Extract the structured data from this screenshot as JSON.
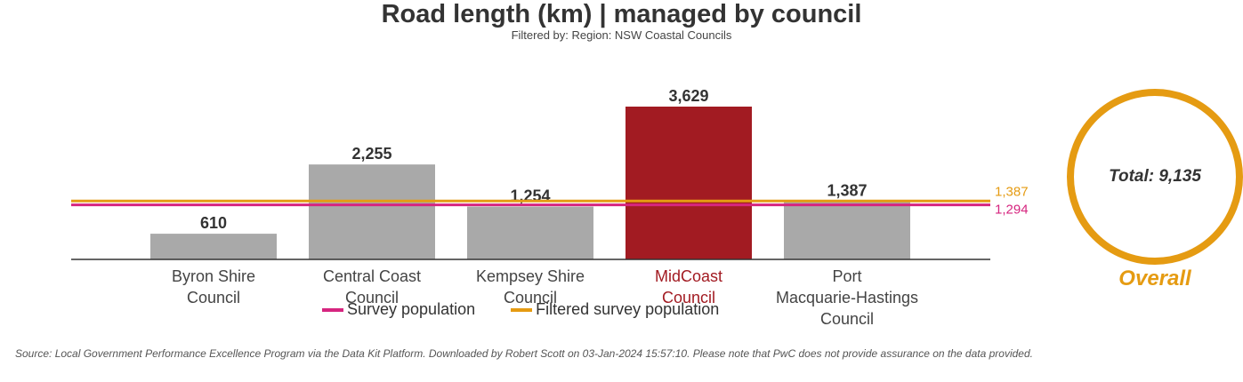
{
  "header": {
    "title": "Road length (km) | managed by council",
    "subtitle": "Filtered by: Region: NSW Coastal Councils"
  },
  "legend": {
    "survey_label": "Survey population",
    "filtered_label": "Filtered survey population"
  },
  "overall": {
    "total_text": "Total: 9,135",
    "label": "Overall"
  },
  "footer": {
    "source": "Source: Local Government Performance Excellence Program via the Data Kit Platform. Downloaded by Robert Scott on 03-Jan-2024 15:57:10. Please note that PwC does not provide assurance on the data provided."
  },
  "colors": {
    "bar_default": "#a9a9a9",
    "bar_highlight": "#a21b22",
    "label_highlight": "#a21b22",
    "survey_line": "#d6257f",
    "filtered_line": "#e59b12",
    "axis": "#333333"
  },
  "chart_data": {
    "type": "bar",
    "title": "Road length (km) | managed by council",
    "subtitle": "Filtered by: Region: NSW Coastal Councils",
    "categories": [
      "Byron Shire\nCouncil",
      "Central Coast\nCouncil",
      "Kempsey Shire\nCouncil",
      "MidCoast\nCouncil",
      "Port\nMacquarie-Hastings\nCouncil"
    ],
    "values": [
      610,
      2255,
      1254,
      3629,
      1387
    ],
    "value_labels": [
      "610",
      "2,255",
      "1,254",
      "3,629",
      "1,387"
    ],
    "highlight_index": 3,
    "ylim": [
      0,
      3629
    ],
    "grid": false,
    "reference_lines": [
      {
        "name": "Survey population",
        "value": 1294,
        "label": "1,294"
      },
      {
        "name": "Filtered survey population",
        "value": 1387,
        "label": "1,387"
      }
    ],
    "legend_position": "bottom"
  }
}
